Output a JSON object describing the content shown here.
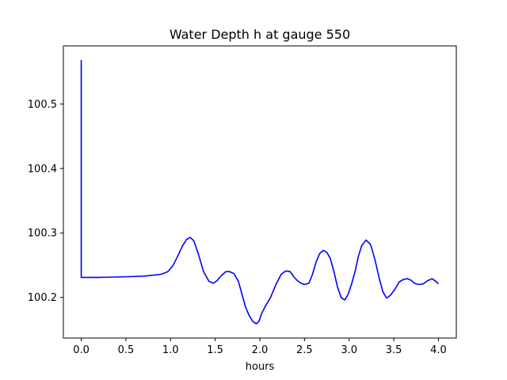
{
  "chart_data": {
    "type": "line",
    "title": "Water Depth h at gauge 550",
    "xlabel": "hours",
    "ylabel": "",
    "xlim": [
      -0.2,
      4.2
    ],
    "ylim": [
      100.137,
      100.59
    ],
    "xticks": [
      {
        "value": 0.0,
        "label": "0.0"
      },
      {
        "value": 0.5,
        "label": "0.5"
      },
      {
        "value": 1.0,
        "label": "1.0"
      },
      {
        "value": 1.5,
        "label": "1.5"
      },
      {
        "value": 2.0,
        "label": "2.0"
      },
      {
        "value": 2.5,
        "label": "2.5"
      },
      {
        "value": 3.0,
        "label": "3.0"
      },
      {
        "value": 3.5,
        "label": "3.5"
      },
      {
        "value": 4.0,
        "label": "4.0"
      }
    ],
    "yticks": [
      {
        "value": 100.2,
        "label": "100.2"
      },
      {
        "value": 100.3,
        "label": "100.3"
      },
      {
        "value": 100.4,
        "label": "100.4"
      },
      {
        "value": 100.5,
        "label": "100.5"
      }
    ],
    "grid": false,
    "series": [
      {
        "color": "#0000ff",
        "x": [
          0.0,
          0.0,
          0.001,
          0.2,
          0.5,
          0.7,
          0.9,
          0.97,
          1.03,
          1.08,
          1.13,
          1.18,
          1.22,
          1.26,
          1.31,
          1.37,
          1.43,
          1.48,
          1.52,
          1.57,
          1.62,
          1.66,
          1.71,
          1.76,
          1.8,
          1.84,
          1.88,
          1.92,
          1.96,
          1.99,
          2.02,
          2.06,
          2.12,
          2.18,
          2.24,
          2.29,
          2.34,
          2.38,
          2.42,
          2.46,
          2.5,
          2.55,
          2.59,
          2.63,
          2.67,
          2.71,
          2.75,
          2.79,
          2.83,
          2.87,
          2.91,
          2.95,
          2.99,
          3.03,
          3.07,
          3.1,
          3.14,
          3.19,
          3.24,
          3.29,
          3.34,
          3.38,
          3.42,
          3.46,
          3.51,
          3.56,
          3.61,
          3.65,
          3.69,
          3.73,
          3.78,
          3.83,
          3.88,
          3.93,
          3.97,
          4.0
        ],
        "y": [
          100.568,
          100.231,
          100.231,
          100.231,
          100.232,
          100.233,
          100.236,
          100.24,
          100.25,
          100.264,
          100.279,
          100.29,
          100.293,
          100.288,
          100.268,
          100.24,
          100.225,
          100.222,
          100.226,
          100.234,
          100.24,
          100.24,
          100.237,
          100.225,
          100.205,
          100.185,
          100.172,
          100.163,
          100.159,
          100.163,
          100.175,
          100.186,
          100.2,
          100.22,
          100.236,
          100.241,
          100.24,
          100.232,
          100.226,
          100.222,
          100.22,
          100.222,
          100.236,
          100.255,
          100.268,
          100.273,
          100.27,
          100.26,
          100.24,
          100.216,
          100.2,
          100.196,
          100.205,
          100.222,
          100.242,
          100.262,
          100.28,
          100.289,
          100.282,
          100.258,
          100.228,
          100.208,
          100.199,
          100.203,
          100.212,
          100.224,
          100.228,
          100.229,
          100.227,
          100.222,
          100.22,
          100.221,
          100.226,
          100.229,
          100.225,
          100.221
        ]
      }
    ]
  }
}
